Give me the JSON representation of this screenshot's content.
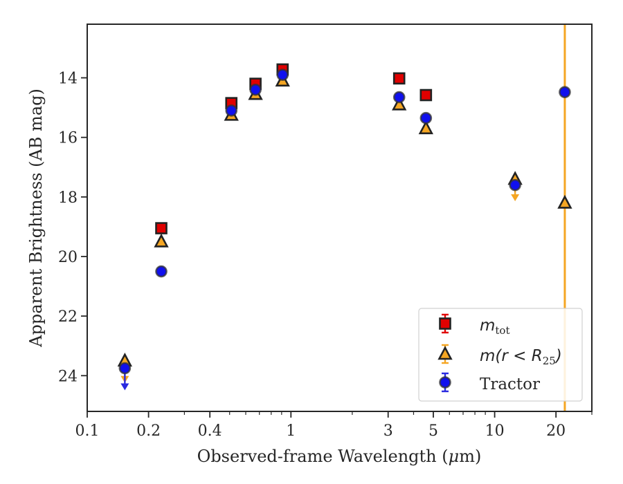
{
  "chart_data": {
    "type": "scatter",
    "xlabel": "Observed-frame Wavelength (",
    "xlabel_mu": "μ",
    "xlabel_end": "m)",
    "ylabel": "Apparent Brightness (AB mag)",
    "x_scale": "log",
    "y_inverted": true,
    "xlim": [
      0.1,
      30
    ],
    "ylim": [
      25.2,
      12.2
    ],
    "x_ticks": [
      {
        "value": 0.1,
        "label": "0.1"
      },
      {
        "value": 0.2,
        "label": "0.2"
      },
      {
        "value": 0.4,
        "label": "0.4"
      },
      {
        "value": 1,
        "label": "1"
      },
      {
        "value": 3,
        "label": "3"
      },
      {
        "value": 5,
        "label": "5"
      },
      {
        "value": 10,
        "label": "10"
      },
      {
        "value": 20,
        "label": "20"
      }
    ],
    "y_ticks": [
      {
        "value": 14,
        "label": "14"
      },
      {
        "value": 16,
        "label": "16"
      },
      {
        "value": 18,
        "label": "18"
      },
      {
        "value": 20,
        "label": "20"
      },
      {
        "value": 22,
        "label": "22"
      },
      {
        "value": 24,
        "label": "24"
      }
    ],
    "vertical_line": {
      "x": 22.1,
      "color": "#f5a623"
    },
    "legend_position": "lower-right",
    "series": [
      {
        "key": "mtot",
        "legend_main": "m",
        "legend_sub": "tot",
        "marker": "square",
        "color": "#e00000",
        "errcolor": "#e00000",
        "points": [
          {
            "x": 0.231,
            "y": 19.05
          },
          {
            "x": 0.51,
            "y": 14.85
          },
          {
            "x": 0.67,
            "y": 14.2
          },
          {
            "x": 0.91,
            "y": 13.72
          },
          {
            "x": 3.4,
            "y": 14.02
          },
          {
            "x": 4.6,
            "y": 14.58
          }
        ]
      },
      {
        "key": "mr25",
        "legend_main": "m",
        "legend_paren": "(r < R",
        "legend_sub": "25",
        "legend_close": ")",
        "marker": "triangle",
        "color": "#f5a623",
        "errcolor": "#f5a623",
        "points": [
          {
            "x": 0.153,
            "y": 23.5,
            "upper_limit": true
          },
          {
            "x": 0.231,
            "y": 19.5
          },
          {
            "x": 0.51,
            "y": 15.25
          },
          {
            "x": 0.67,
            "y": 14.55
          },
          {
            "x": 0.91,
            "y": 14.1
          },
          {
            "x": 3.4,
            "y": 14.9
          },
          {
            "x": 4.6,
            "y": 15.7
          },
          {
            "x": 12.6,
            "y": 17.4,
            "upper_limit": true
          },
          {
            "x": 22.1,
            "y": 18.2
          }
        ]
      },
      {
        "key": "tractor",
        "legend_main": "Tractor",
        "marker": "circle",
        "color": "#1010ee",
        "errcolor": "#2a2ae0",
        "points": [
          {
            "x": 0.153,
            "y": 23.75,
            "upper_limit": true
          },
          {
            "x": 0.231,
            "y": 20.5
          },
          {
            "x": 0.51,
            "y": 15.1
          },
          {
            "x": 0.67,
            "y": 14.4
          },
          {
            "x": 0.91,
            "y": 13.9
          },
          {
            "x": 3.4,
            "y": 14.65
          },
          {
            "x": 4.6,
            "y": 15.35
          },
          {
            "x": 12.6,
            "y": 17.6
          },
          {
            "x": 22.1,
            "y": 14.48
          }
        ]
      }
    ]
  }
}
